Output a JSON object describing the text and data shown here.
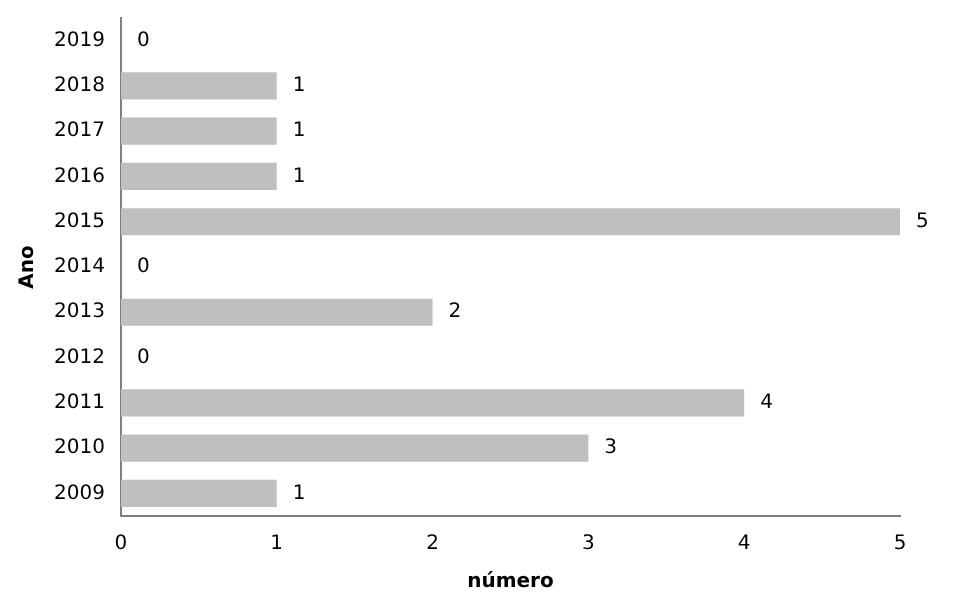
{
  "chart_data": {
    "type": "bar",
    "orientation": "horizontal",
    "xlabel": "número",
    "ylabel": "Ano",
    "categories": [
      "2019",
      "2018",
      "2017",
      "2016",
      "2015",
      "2014",
      "2013",
      "2012",
      "2011",
      "2010",
      "2009"
    ],
    "values": [
      0,
      1,
      1,
      1,
      5,
      0,
      2,
      0,
      4,
      3,
      1
    ],
    "color": "#bfbfbf",
    "xlim": [
      0,
      5
    ],
    "xticks": [
      0,
      1,
      2,
      3,
      4,
      5
    ],
    "grid": false,
    "legend": false,
    "data_labels": true
  }
}
